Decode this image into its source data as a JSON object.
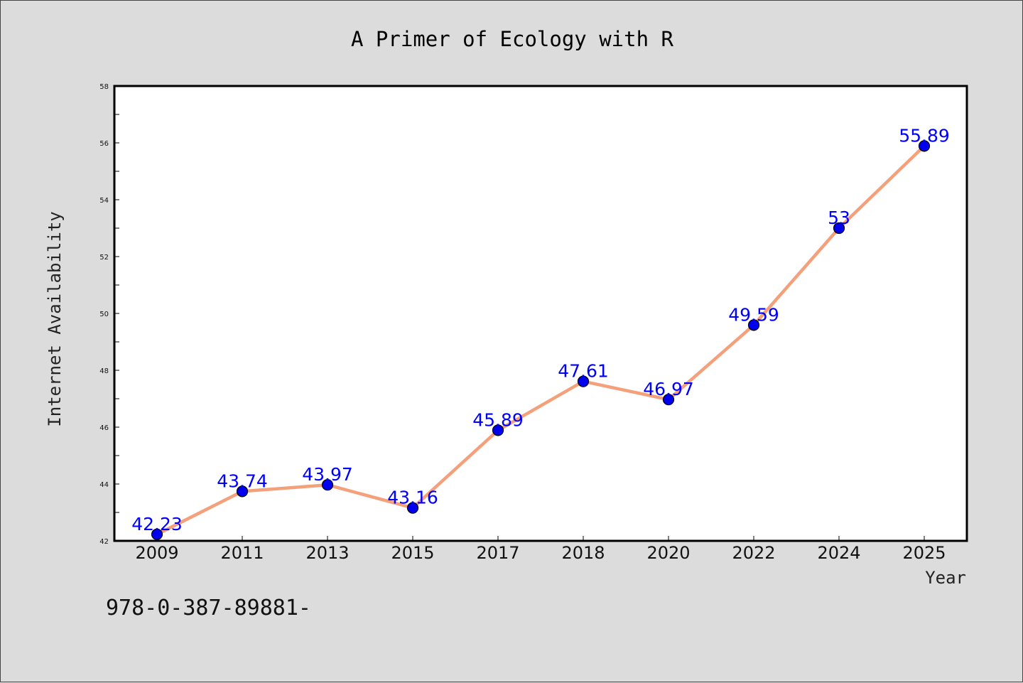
{
  "chart_data": {
    "type": "line",
    "title": "A Primer of Ecology with R",
    "xlabel": "Year",
    "ylabel": "Internet Availability",
    "categories": [
      "2009",
      "2011",
      "2013",
      "2015",
      "2017",
      "2018",
      "2020",
      "2022",
      "2024",
      "2025"
    ],
    "series": [
      {
        "values": [
          42.23,
          43.74,
          43.97,
          43.16,
          45.89,
          47.61,
          46.97,
          49.59,
          53,
          55.89
        ],
        "line_color": "#f4a07a",
        "marker_color": "#0000ee",
        "label_color": "#0000ff"
      }
    ],
    "data_labels": [
      "42.23",
      "43.74",
      "43.97",
      "43.16",
      "45.89",
      "47.61",
      "46.97",
      "49.59",
      "53",
      "55.89"
    ],
    "ylim": [
      42,
      58
    ],
    "yticks": [
      "42",
      "44",
      "46",
      "48",
      "50",
      "52",
      "54",
      "56",
      "58"
    ],
    "grid": false,
    "legend": "none"
  },
  "footnote": "978-0-387-89881-",
  "colors": {
    "background": "#dcdcdc",
    "plot_area": "#ffffff",
    "frame": "#000000"
  }
}
